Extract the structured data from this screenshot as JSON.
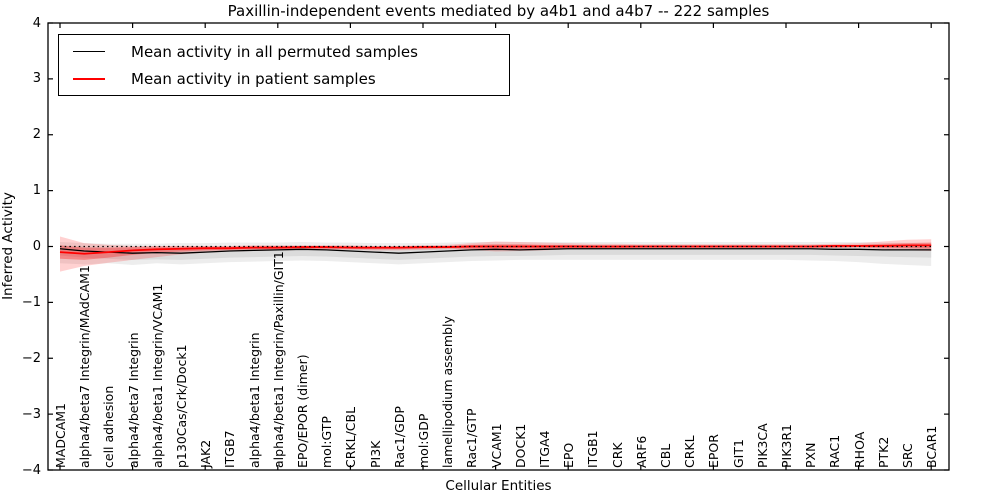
{
  "chart_data": {
    "type": "line",
    "title": "Paxillin-independent events mediated by a4b1 and a4b7 -- 222 samples",
    "xlabel": "Cellular Entities",
    "ylabel": "Inferred Activity",
    "ylim": [
      -4,
      4
    ],
    "ytick_labels": [
      "4",
      "3",
      "2",
      "1",
      "0",
      "−1",
      "−2",
      "−3",
      "−4"
    ],
    "ytick_values": [
      4,
      3,
      2,
      1,
      0,
      -1,
      -2,
      -3,
      -4
    ],
    "grid": false,
    "legend_position": "upper left",
    "zero_line": {
      "y": 0,
      "style": "dotted",
      "color": "#000000"
    },
    "categories": [
      "MADCAM1",
      "alpha4/beta7 Integrin/MAdCAM1",
      "cell adhesion",
      "alpha4/beta7 Integrin",
      "alpha4/beta1 Integrin/VCAM1",
      "p130Cas/Crk/Dock1",
      "JAK2",
      "ITGB7",
      "alpha4/beta1 Integrin",
      "alpha4/beta1 Integrin/Paxillin/GIT1",
      "EPO/EPOR (dimer)",
      "mol:GTP",
      "CRKL/CBL",
      "PI3K",
      "Rac1/GDP",
      "mol:GDP",
      "lamellipodium assembly",
      "Rac1/GTP",
      "VCAM1",
      "DOCK1",
      "ITGA4",
      "EPO",
      "ITGB1",
      "CRK",
      "ARF6",
      "CBL",
      "CRKL",
      "EPOR",
      "GIT1",
      "PIK3CA",
      "PIK3R1",
      "PXN",
      "RAC1",
      "RHOA",
      "PTK2",
      "SRC",
      "BCAR1"
    ],
    "series": [
      {
        "name": "Mean activity in all permuted samples",
        "color": "#000000",
        "width": 1.3,
        "values": [
          -0.04,
          -0.08,
          -0.1,
          -0.12,
          -0.11,
          -0.12,
          -0.1,
          -0.08,
          -0.07,
          -0.06,
          -0.05,
          -0.06,
          -0.08,
          -0.1,
          -0.12,
          -0.1,
          -0.08,
          -0.06,
          -0.05,
          -0.06,
          -0.05,
          -0.04,
          -0.04,
          -0.04,
          -0.04,
          -0.04,
          -0.04,
          -0.04,
          -0.04,
          -0.04,
          -0.04,
          -0.04,
          -0.05,
          -0.05,
          -0.06,
          -0.06,
          -0.06
        ]
      },
      {
        "name": "Mean activity in patient samples",
        "color": "#ff0000",
        "width": 1.8,
        "values": [
          -0.1,
          -0.13,
          -0.1,
          -0.07,
          -0.05,
          -0.04,
          -0.03,
          -0.03,
          -0.02,
          -0.02,
          -0.01,
          -0.01,
          -0.02,
          -0.02,
          -0.02,
          -0.01,
          -0.01,
          0.0,
          0.0,
          0.0,
          0.0,
          0.0,
          0.0,
          0.0,
          0.0,
          0.0,
          0.0,
          0.0,
          0.0,
          0.0,
          0.0,
          0.0,
          0.01,
          0.01,
          0.01,
          0.02,
          0.02
        ]
      }
    ],
    "bands": [
      {
        "name": "permuted-band-outer",
        "color": "#999999",
        "opacity": 0.18,
        "upper": [
          0.08,
          0.06,
          0.05,
          0.05,
          0.05,
          0.06,
          0.06,
          0.07,
          0.07,
          0.07,
          0.08,
          0.07,
          0.07,
          0.06,
          0.06,
          0.06,
          0.07,
          0.08,
          0.08,
          0.08,
          0.08,
          0.08,
          0.08,
          0.08,
          0.08,
          0.08,
          0.08,
          0.08,
          0.08,
          0.08,
          0.08,
          0.08,
          0.08,
          0.08,
          0.07,
          0.07,
          0.07
        ],
        "lower": [
          -0.3,
          -0.32,
          -0.3,
          -0.33,
          -0.3,
          -0.32,
          -0.3,
          -0.28,
          -0.27,
          -0.26,
          -0.25,
          -0.26,
          -0.28,
          -0.3,
          -0.32,
          -0.3,
          -0.28,
          -0.26,
          -0.25,
          -0.24,
          -0.24,
          -0.24,
          -0.24,
          -0.24,
          -0.24,
          -0.24,
          -0.24,
          -0.24,
          -0.24,
          -0.24,
          -0.24,
          -0.25,
          -0.26,
          -0.28,
          -0.31,
          -0.33,
          -0.35
        ]
      },
      {
        "name": "permuted-band-inner",
        "color": "#999999",
        "opacity": 0.22,
        "upper": [
          0.02,
          0.0,
          -0.02,
          -0.03,
          -0.03,
          -0.04,
          -0.03,
          -0.02,
          -0.01,
          0.0,
          0.01,
          0.0,
          -0.01,
          -0.02,
          -0.04,
          -0.03,
          -0.01,
          0.0,
          0.01,
          0.01,
          0.01,
          0.02,
          0.02,
          0.02,
          0.02,
          0.02,
          0.02,
          0.02,
          0.02,
          0.02,
          0.02,
          0.02,
          0.01,
          0.01,
          0.0,
          0.0,
          0.0
        ],
        "lower": [
          -0.16,
          -0.2,
          -0.22,
          -0.24,
          -0.23,
          -0.24,
          -0.22,
          -0.2,
          -0.19,
          -0.18,
          -0.17,
          -0.18,
          -0.2,
          -0.22,
          -0.24,
          -0.22,
          -0.2,
          -0.18,
          -0.17,
          -0.17,
          -0.16,
          -0.15,
          -0.15,
          -0.15,
          -0.15,
          -0.15,
          -0.15,
          -0.15,
          -0.15,
          -0.15,
          -0.15,
          -0.15,
          -0.16,
          -0.17,
          -0.18,
          -0.19,
          -0.2
        ]
      },
      {
        "name": "patient-band-outer",
        "color": "#ff0000",
        "opacity": 0.18,
        "upper": [
          0.18,
          0.06,
          0.03,
          0.01,
          0.01,
          0.01,
          0.01,
          0.01,
          0.02,
          0.02,
          0.02,
          0.02,
          0.02,
          0.01,
          0.01,
          0.02,
          0.03,
          0.06,
          0.09,
          0.08,
          0.07,
          0.06,
          0.05,
          0.05,
          0.04,
          0.04,
          0.04,
          0.04,
          0.04,
          0.04,
          0.04,
          0.04,
          0.05,
          0.06,
          0.09,
          0.12,
          0.13
        ],
        "lower": [
          -0.45,
          -0.35,
          -0.29,
          -0.24,
          -0.19,
          -0.14,
          -0.11,
          -0.09,
          -0.08,
          -0.07,
          -0.06,
          -0.06,
          -0.06,
          -0.07,
          -0.07,
          -0.06,
          -0.05,
          -0.06,
          -0.09,
          -0.08,
          -0.07,
          -0.05,
          -0.04,
          -0.04,
          -0.04,
          -0.04,
          -0.03,
          -0.03,
          -0.03,
          -0.03,
          -0.03,
          -0.03,
          -0.03,
          -0.02,
          -0.05,
          -0.07,
          -0.08
        ]
      },
      {
        "name": "patient-band-inner",
        "color": "#ff0000",
        "opacity": 0.3,
        "upper": [
          0.02,
          -0.02,
          -0.02,
          -0.01,
          0.0,
          0.0,
          0.0,
          0.0,
          0.01,
          0.01,
          0.01,
          0.01,
          0.01,
          0.0,
          0.0,
          0.01,
          0.01,
          0.03,
          0.04,
          0.04,
          0.03,
          0.03,
          0.02,
          0.02,
          0.02,
          0.02,
          0.02,
          0.02,
          0.02,
          0.02,
          0.02,
          0.02,
          0.03,
          0.03,
          0.05,
          0.06,
          0.07
        ],
        "lower": [
          -0.22,
          -0.24,
          -0.2,
          -0.15,
          -0.11,
          -0.09,
          -0.07,
          -0.06,
          -0.05,
          -0.05,
          -0.04,
          -0.04,
          -0.04,
          -0.05,
          -0.05,
          -0.04,
          -0.03,
          -0.04,
          -0.05,
          -0.05,
          -0.04,
          -0.03,
          -0.03,
          -0.03,
          -0.02,
          -0.02,
          -0.02,
          -0.02,
          -0.02,
          -0.02,
          -0.02,
          -0.02,
          -0.02,
          -0.01,
          -0.02,
          -0.03,
          -0.04
        ]
      }
    ]
  },
  "legend": {
    "entries": [
      {
        "label": "Mean activity in all permuted samples",
        "color": "#000000"
      },
      {
        "label": "Mean activity in patient samples",
        "color": "#ff0000"
      }
    ]
  }
}
